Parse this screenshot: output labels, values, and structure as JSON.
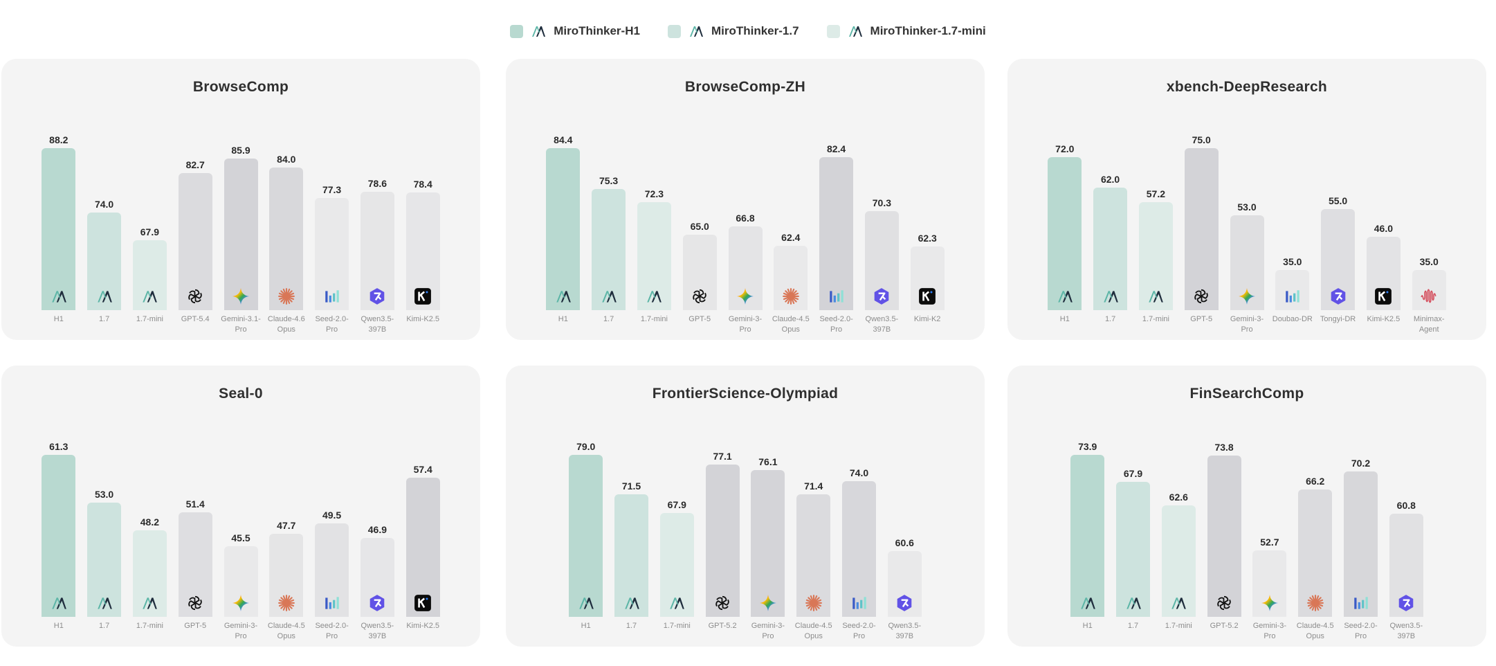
{
  "legend": [
    {
      "label": "MiroThinker-H1",
      "color": "#b8d9d0",
      "icon": "mirothinker-logo-icon"
    },
    {
      "label": "MiroThinker-1.7",
      "color": "#cde3de",
      "icon": "mirothinker-logo-icon"
    },
    {
      "label": "MiroThinker-1.7-mini",
      "color": "#ddebe7",
      "icon": "mirothinker-logo-icon"
    }
  ],
  "colors": {
    "h1": "#b8d9d0",
    "v17": "#cde3de",
    "v17mini": "#ddebe7",
    "competitor_high": "#d3d3d7",
    "competitor_low": "#e9e9ea",
    "card_bg": "#f4f4f4"
  },
  "chart_data": [
    {
      "type": "bar",
      "title": "BrowseComp",
      "ylim": [
        52.6,
        88.2
      ],
      "categories": [
        "H1",
        "1.7",
        "1.7-mini",
        "GPT-5.4",
        "Gemini-3.1-\nPro",
        "Claude-4.6\nOpus",
        "Seed-2.0-\nPro",
        "Qwen3.5-\n397B",
        "Kimi-K2.5"
      ],
      "values": [
        88.2,
        74.0,
        67.9,
        82.7,
        85.9,
        84.0,
        77.3,
        78.6,
        78.4
      ],
      "icons": [
        "miro",
        "miro",
        "miro",
        "openai",
        "gemini",
        "claude",
        "seed",
        "qwen",
        "kimi"
      ],
      "series_kind": [
        "h1",
        "v17",
        "v17mini",
        "comp",
        "comp",
        "comp",
        "comp",
        "comp",
        "comp"
      ]
    },
    {
      "type": "bar",
      "title": "BrowseComp-ZH",
      "ylim": [
        48.0,
        84.4
      ],
      "categories": [
        "H1",
        "1.7",
        "1.7-mini",
        "GPT-5",
        "Gemini-3-\nPro",
        "Claude-4.5\nOpus",
        "Seed-2.0-\nPro",
        "Qwen3.5-\n397B",
        "Kimi-K2"
      ],
      "values": [
        84.4,
        75.3,
        72.3,
        65.0,
        66.8,
        62.4,
        82.4,
        70.3,
        62.3
      ],
      "icons": [
        "miro",
        "miro",
        "miro",
        "openai",
        "gemini",
        "claude",
        "seed",
        "qwen",
        "kimi"
      ],
      "series_kind": [
        "h1",
        "v17",
        "v17mini",
        "comp",
        "comp",
        "comp",
        "comp",
        "comp",
        "comp"
      ]
    },
    {
      "type": "bar",
      "title": "xbench-DeepResearch",
      "ylim": [
        21.8,
        75.0
      ],
      "categories": [
        "H1",
        "1.7",
        "1.7-mini",
        "GPT-5",
        "Gemini-3-\nPro",
        "Doubao-DR",
        "Tongyi-DR",
        "Kimi-K2.5",
        "Minimax-\nAgent"
      ],
      "values": [
        72.0,
        62.0,
        57.2,
        75.0,
        53.0,
        35.0,
        55.0,
        46.0,
        35.0
      ],
      "icons": [
        "miro",
        "miro",
        "miro",
        "openai",
        "gemini",
        "seed",
        "qwen",
        "kimi",
        "minimax"
      ],
      "series_kind": [
        "h1",
        "v17",
        "v17mini",
        "comp",
        "comp",
        "comp",
        "comp",
        "comp",
        "comp"
      ]
    },
    {
      "type": "bar",
      "title": "Seal-0",
      "ylim": [
        33.3,
        61.3
      ],
      "categories": [
        "H1",
        "1.7",
        "1.7-mini",
        "GPT-5",
        "Gemini-3-\nPro",
        "Claude-4.5\nOpus",
        "Seed-2.0-\nPro",
        "Qwen3.5-\n397B",
        "Kimi-K2.5"
      ],
      "values": [
        61.3,
        53.0,
        48.2,
        51.4,
        45.5,
        47.7,
        49.5,
        46.9,
        57.4
      ],
      "icons": [
        "miro",
        "miro",
        "miro",
        "openai",
        "gemini",
        "claude",
        "seed",
        "qwen",
        "kimi"
      ],
      "series_kind": [
        "h1",
        "v17",
        "v17mini",
        "comp",
        "comp",
        "comp",
        "comp",
        "comp",
        "comp"
      ]
    },
    {
      "type": "bar",
      "title": "FrontierScience-Olympiad",
      "ylim": [
        48.0,
        79.0
      ],
      "categories": [
        "H1",
        "1.7",
        "1.7-mini",
        "GPT-5.2",
        "Gemini-3-\nPro",
        "Claude-4.5\nOpus",
        "Seed-2.0-\nPro",
        "Qwen3.5-\n397B"
      ],
      "values": [
        79.0,
        71.5,
        67.9,
        77.1,
        76.1,
        71.4,
        74.0,
        60.6
      ],
      "icons": [
        "miro",
        "miro",
        "miro",
        "openai",
        "gemini",
        "claude",
        "seed",
        "qwen"
      ],
      "series_kind": [
        "h1",
        "v17",
        "v17mini",
        "comp",
        "comp",
        "comp",
        "comp",
        "comp"
      ]
    },
    {
      "type": "bar",
      "title": "FinSearchComp",
      "ylim": [
        37.9,
        73.9
      ],
      "categories": [
        "H1",
        "1.7",
        "1.7-mini",
        "GPT-5.2",
        "Gemini-3-\nPro",
        "Claude-4.5\nOpus",
        "Seed-2.0-\nPro",
        "Qwen3.5-\n397B"
      ],
      "values": [
        73.9,
        67.9,
        62.6,
        73.8,
        52.7,
        66.2,
        70.2,
        60.8
      ],
      "icons": [
        "miro",
        "miro",
        "miro",
        "openai",
        "gemini",
        "claude",
        "seed",
        "qwen"
      ],
      "series_kind": [
        "h1",
        "v17",
        "v17mini",
        "comp",
        "comp",
        "comp",
        "comp",
        "comp"
      ]
    }
  ]
}
